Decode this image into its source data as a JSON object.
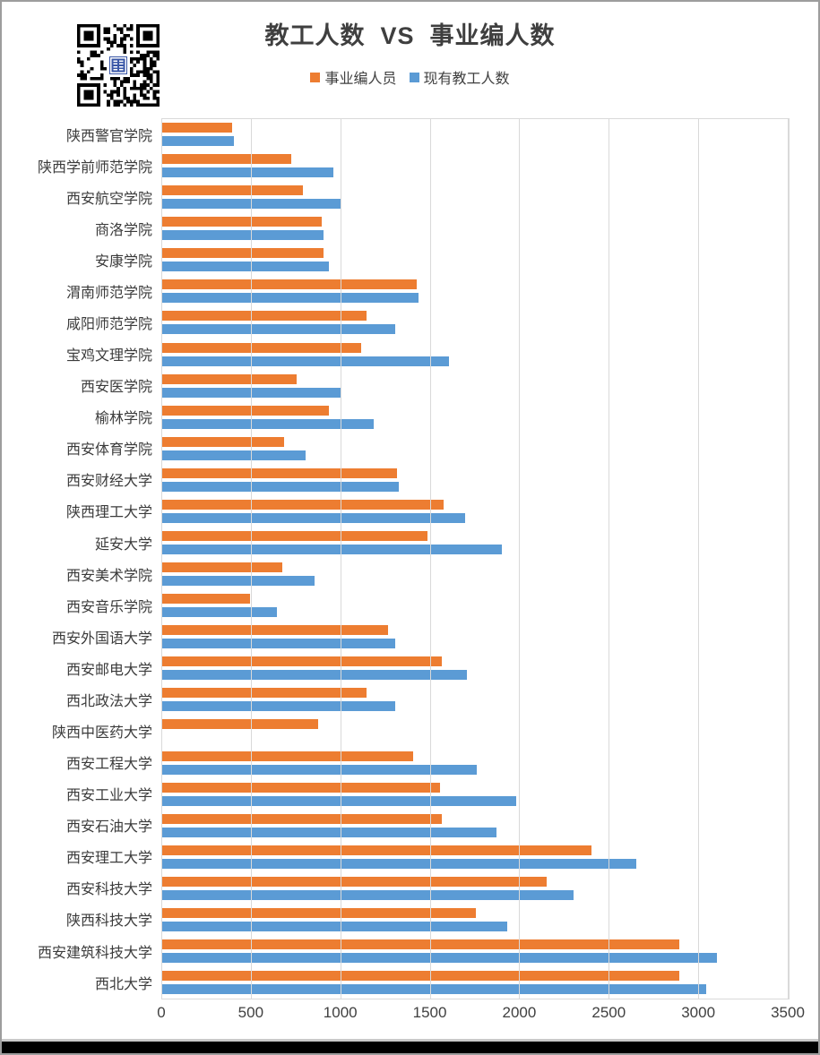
{
  "header": {
    "title": "教工人数  VS  事业编人数",
    "qr_code_icon": "qr-code"
  },
  "legend": [
    {
      "label": "事业编人员",
      "color": "#ED7D31"
    },
    {
      "label": "现有教工人数",
      "color": "#5B9BD5"
    }
  ],
  "chart_data": {
    "type": "bar",
    "orientation": "horizontal",
    "title": "教工人数  VS  事业编人数",
    "categories": [
      "陕西警官学院",
      "陕西学前师范学院",
      "西安航空学院",
      "商洛学院",
      "安康学院",
      "渭南师范学院",
      "咸阳师范学院",
      "宝鸡文理学院",
      "西安医学院",
      "榆林学院",
      "西安体育学院",
      "西安财经大学",
      "陕西理工大学",
      "延安大学",
      "西安美术学院",
      "西安音乐学院",
      "西安外国语大学",
      "西安邮电大学",
      "西北政法大学",
      "陕西中医药大学",
      "西安工程大学",
      "西安工业大学",
      "西安石油大学",
      "西安理工大学",
      "西安科技大学",
      "陕西科技大学",
      "西安建筑科技大学",
      "西北大学"
    ],
    "series": [
      {
        "name": "事业编人员",
        "color": "#ED7D31",
        "values": [
          390,
          720,
          785,
          890,
          900,
          1420,
          1140,
          1110,
          750,
          930,
          680,
          1310,
          1570,
          1480,
          670,
          490,
          1260,
          1560,
          1140,
          870,
          1400,
          1550,
          1560,
          2400,
          2150,
          1750,
          2890,
          2890
        ]
      },
      {
        "name": "现有教工人数",
        "color": "#5B9BD5",
        "values": [
          400,
          955,
          1000,
          900,
          930,
          1430,
          1300,
          1600,
          1000,
          1180,
          800,
          1320,
          1690,
          1900,
          850,
          640,
          1300,
          1700,
          1300,
          null,
          1760,
          1980,
          1870,
          2650,
          2300,
          1930,
          3100,
          3040
        ]
      }
    ],
    "xlim": [
      0,
      3500
    ],
    "x_ticks": [
      "0",
      "500",
      "1000",
      "1500",
      "2000",
      "2500",
      "3000",
      "3500"
    ],
    "grid": "vertical",
    "gridline_color": "#D9D9D9",
    "legend_position": "top"
  },
  "colors": {
    "title_text": "#3F3F3F",
    "axis_text": "#404040",
    "plot_border": "#D9D9D9",
    "frame_border": "#9D9D9D",
    "bottom_bar": "#000000"
  }
}
